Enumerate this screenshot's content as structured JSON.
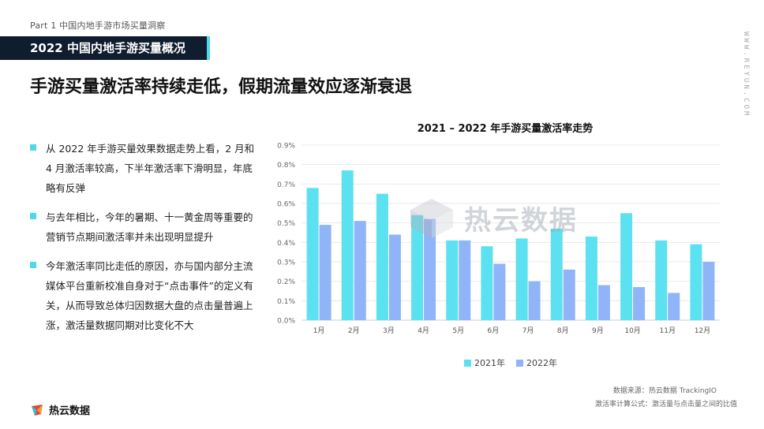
{
  "header": {
    "part_label": "Part 1  中国内地手游市场买量洞察",
    "section_banner": "2022 中国内地手游买量概况",
    "vertical_url": "WWW.REYUN.COM"
  },
  "headline": "手游买量激活率持续走低，假期流量效应逐渐衰退",
  "bullets": [
    "从 2022 年手游买量效果数据走势上看，2 月和 4 月激活率较高，下半年激活率下滑明显，年底略有反弹",
    "与去年相比，今年的暑期、十一黄金周等重要的营销节点期间激活率并未出现明显提升",
    "今年激活率同比走低的原因，亦与国内部分主流媒体平台重新校准自身对于“点击事件”的定义有关，从而导致总体归因数据大盘的点击量普遍上涨，激活量数据同期对比变化不大"
  ],
  "chart_data": {
    "type": "bar",
    "title": "2021 – 2022 年手游买量激活率走势",
    "categories": [
      "1月",
      "2月",
      "3月",
      "4月",
      "5月",
      "6月",
      "7月",
      "8月",
      "9月",
      "10月",
      "11月",
      "12月"
    ],
    "series": [
      {
        "name": "2021年",
        "color": "#5ce1f0",
        "values": [
          0.68,
          0.77,
          0.65,
          0.54,
          0.41,
          0.38,
          0.42,
          0.47,
          0.43,
          0.55,
          0.41,
          0.39
        ]
      },
      {
        "name": "2022年",
        "color": "#8fb4f7",
        "values": [
          0.49,
          0.51,
          0.44,
          0.52,
          0.41,
          0.29,
          0.2,
          0.26,
          0.18,
          0.17,
          0.14,
          0.3
        ]
      }
    ],
    "yticks": [
      "0.0%",
      "0.1%",
      "0.2%",
      "0.3%",
      "0.4%",
      "0.5%",
      "0.6%",
      "0.7%",
      "0.8%",
      "0.9%"
    ],
    "ylim": [
      0,
      0.9
    ],
    "grid": true,
    "legend": "bottom-center"
  },
  "watermark": "热云数据",
  "sources": {
    "line1": "数据来源：热云数据 TrackingIO",
    "line2": "激活率计算公式：激活量与点击量之间的比值"
  },
  "brand": "热云数据"
}
